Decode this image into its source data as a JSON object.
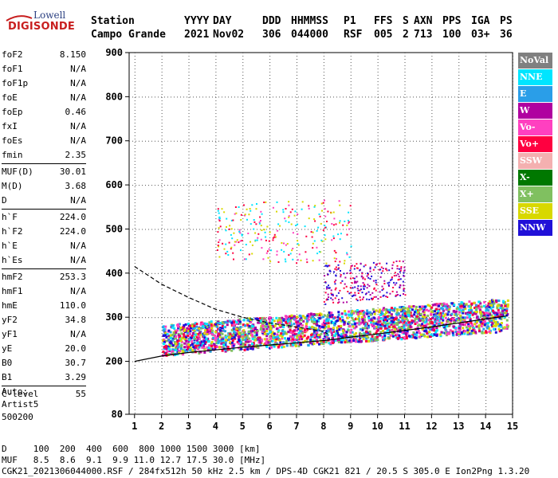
{
  "logo": {
    "top": "Lowell",
    "main": "DIGISONDE"
  },
  "header": {
    "rows": [
      [
        "Station",
        "YYYY",
        "DAY",
        "DDD",
        "HHMMSS",
        "P1",
        "FFS",
        "S",
        "AXN",
        "PPS",
        "IGA",
        "PS"
      ],
      [
        "Campo Grande",
        "2021",
        "Nov02",
        "306",
        "044000",
        "RSF",
        "005",
        "2",
        "713",
        "100",
        "03+",
        "36"
      ]
    ]
  },
  "params": {
    "groups": [
      [
        [
          "foF2",
          "8.150"
        ],
        [
          "foF1",
          "N/A"
        ],
        [
          "foF1p",
          "N/A"
        ],
        [
          "foE",
          "N/A"
        ],
        [
          "foEp",
          "0.46"
        ],
        [
          "fxI",
          "N/A"
        ],
        [
          "foEs",
          "N/A"
        ],
        [
          "fmin",
          "2.35"
        ]
      ],
      [
        [
          "MUF(D)",
          "30.01"
        ],
        [
          "M(D)",
          "3.68"
        ],
        [
          "D",
          "N/A"
        ]
      ],
      [
        [
          "h`F",
          "224.0"
        ],
        [
          "h`F2",
          "224.0"
        ],
        [
          "h`E",
          "N/A"
        ],
        [
          "h`Es",
          "N/A"
        ]
      ],
      [
        [
          "hmF2",
          "253.3"
        ],
        [
          "hmF1",
          "N/A"
        ],
        [
          "hmE",
          "110.0"
        ],
        [
          "yF2",
          "34.8"
        ],
        [
          "yF1",
          "N/A"
        ],
        [
          "yE",
          "20.0"
        ],
        [
          "B0",
          "30.7"
        ],
        [
          "B1",
          "3.29"
        ]
      ],
      [
        [
          "C-level",
          "55"
        ]
      ]
    ],
    "auto": [
      "Auto:",
      "Artist5",
      "500200"
    ]
  },
  "legend": [
    {
      "label": "NoVal",
      "color": "#808080"
    },
    {
      "label": "NNE",
      "color": "#00e5ff"
    },
    {
      "label": "E",
      "color": "#2a9ee8"
    },
    {
      "label": "W",
      "color": "#b000a0"
    },
    {
      "label": "Vo-",
      "color": "#ff40c0"
    },
    {
      "label": "Vo+",
      "color": "#ff0040"
    },
    {
      "label": "SSW",
      "color": "#f4b0b0"
    },
    {
      "label": "X-",
      "color": "#007800"
    },
    {
      "label": "X+",
      "color": "#80c060"
    },
    {
      "label": "SSE",
      "color": "#d8d800"
    },
    {
      "label": "NNW",
      "color": "#2010d8"
    }
  ],
  "chart_data": {
    "type": "scatter",
    "xlabel": "",
    "ylabel": "",
    "xlim": [
      0.8,
      15.0
    ],
    "ylim": [
      80,
      900
    ],
    "x_ticks": [
      1,
      2,
      3,
      4,
      5,
      6,
      7,
      8,
      9,
      10,
      11,
      12,
      13,
      14,
      15
    ],
    "y_ticks": [
      80,
      200,
      300,
      400,
      500,
      600,
      700,
      800,
      900
    ],
    "grid": true,
    "lines": [
      {
        "style": "solid",
        "color": "#000000",
        "points": [
          [
            1.0,
            200
          ],
          [
            2.0,
            212
          ],
          [
            3.0,
            220
          ],
          [
            4.0,
            226
          ],
          [
            5.0,
            232
          ],
          [
            6.0,
            237
          ],
          [
            7.0,
            242
          ],
          [
            8.0,
            247
          ],
          [
            8.15,
            248
          ]
        ]
      },
      {
        "style": "dashed",
        "color": "#000000",
        "points": [
          [
            1.0,
            415
          ],
          [
            2.0,
            375
          ],
          [
            3.0,
            345
          ],
          [
            4.0,
            318
          ],
          [
            5.0,
            300
          ],
          [
            6.0,
            287
          ],
          [
            7.0,
            278
          ],
          [
            8.0,
            268
          ],
          [
            8.15,
            262
          ]
        ]
      },
      {
        "style": "solid",
        "color": "#000000",
        "points": [
          [
            8.15,
            248
          ],
          [
            9.0,
            255
          ],
          [
            10.0,
            262
          ],
          [
            11.0,
            270
          ],
          [
            12.0,
            278
          ],
          [
            13.0,
            287
          ],
          [
            14.0,
            296
          ],
          [
            14.8,
            303
          ]
        ]
      }
    ],
    "scatter_regions": [
      {
        "x": [
          2.0,
          14.8
        ],
        "y_low_start": 215,
        "y_low_end": 270,
        "y_high_start": 285,
        "y_high_end": 345,
        "colors": [
          "#b000a0",
          "#ff40c0",
          "#2010d8",
          "#ff0040",
          "#00e5ff",
          "#2a9ee8",
          "#d8d800",
          "#80c060"
        ]
      },
      {
        "x": [
          8.0,
          11.0
        ],
        "y_low_start": 330,
        "y_low_end": 350,
        "y_high_start": 420,
        "y_high_end": 430,
        "colors": [
          "#2010d8",
          "#b000a0",
          "#ff0040"
        ]
      },
      {
        "x": [
          4.0,
          9.0
        ],
        "y_low_start": 430,
        "y_low_end": 420,
        "y_high_start": 560,
        "y_high_end": 570,
        "colors": [
          "#ff0040",
          "#ff40c0",
          "#d8d800",
          "#00e5ff"
        ]
      }
    ]
  },
  "footer": {
    "rows": [
      "D     100  200  400  600  800 1000 1500 3000 [km]",
      "MUF   8.5  8.6  9.1  9.9 11.0 12.7 17.5 30.0 [MHz]",
      "CGK21_2021306044000.RSF / 284fx512h 50 kHz 2.5 km / DPS-4D CGK21 821 / 20.5 S 305.0 E Ion2Png 1.3.20"
    ]
  }
}
